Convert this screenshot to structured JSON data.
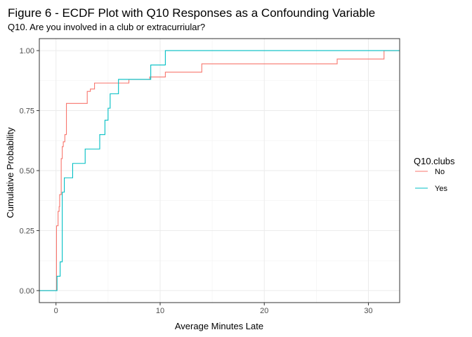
{
  "chart_data": {
    "type": "line",
    "subtype": "ecdf-step",
    "title": "Figure 6 - ECDF Plot with Q10 Responses as a Confounding Variable",
    "subtitle": "Q10. Are you involved in a club or extracurriular?",
    "xlabel": "Average Minutes Late",
    "ylabel": "Cumulative Probability",
    "xlim": [
      -1.6,
      33.0
    ],
    "ylim": [
      -0.05,
      1.05
    ],
    "x_ticks": [
      0,
      10,
      20,
      30
    ],
    "y_ticks": [
      0.0,
      0.25,
      0.5,
      0.75,
      1.0
    ],
    "x_tick_labels": [
      "0",
      "10",
      "20",
      "30"
    ],
    "y_tick_labels": [
      "0.00",
      "0.25",
      "0.50",
      "0.75",
      "1.00"
    ],
    "grid": true,
    "legend": {
      "title": "Q10.clubs",
      "position": "right"
    },
    "series": [
      {
        "name": "No",
        "color": "#F8766D",
        "steps": [
          [
            0.05,
            0.27
          ],
          [
            0.2,
            0.33
          ],
          [
            0.3,
            0.35
          ],
          [
            0.35,
            0.4
          ],
          [
            0.5,
            0.55
          ],
          [
            0.6,
            0.6
          ],
          [
            0.7,
            0.62
          ],
          [
            0.85,
            0.65
          ],
          [
            1.0,
            0.78
          ],
          [
            3.0,
            0.83
          ],
          [
            3.3,
            0.84
          ],
          [
            3.7,
            0.865
          ],
          [
            7.0,
            0.88
          ],
          [
            9.0,
            0.89
          ],
          [
            10.5,
            0.91
          ],
          [
            14.0,
            0.945
          ],
          [
            27.0,
            0.965
          ],
          [
            31.5,
            1.0
          ]
        ]
      },
      {
        "name": "Yes",
        "color": "#00BFC4",
        "steps": [
          [
            0.1,
            0.06
          ],
          [
            0.4,
            0.12
          ],
          [
            0.6,
            0.41
          ],
          [
            0.8,
            0.47
          ],
          [
            1.6,
            0.53
          ],
          [
            2.8,
            0.59
          ],
          [
            4.2,
            0.65
          ],
          [
            4.7,
            0.71
          ],
          [
            5.0,
            0.76
          ],
          [
            5.2,
            0.82
          ],
          [
            6.0,
            0.88
          ],
          [
            9.1,
            0.94
          ],
          [
            10.5,
            1.0
          ]
        ]
      }
    ]
  }
}
